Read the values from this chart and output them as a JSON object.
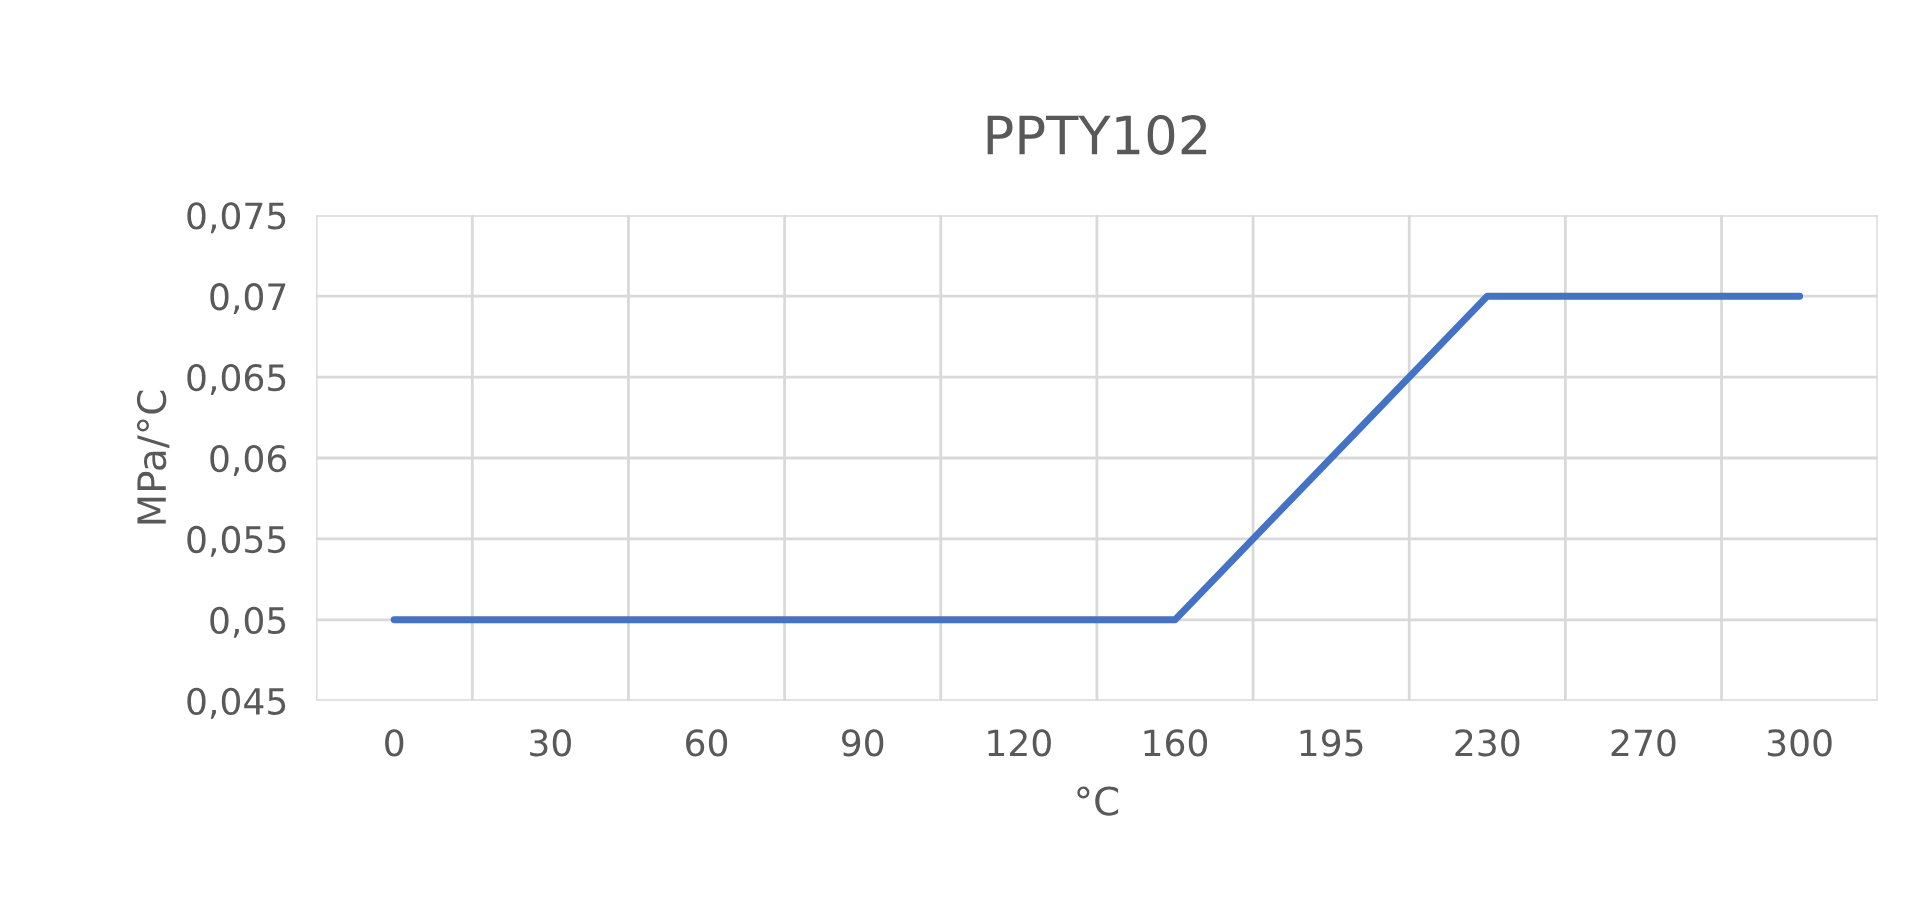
{
  "chart_data": {
    "type": "line",
    "title": "PPTY102",
    "xlabel": "°C",
    "ylabel": "MPa/°C",
    "categories": [
      "0",
      "30",
      "60",
      "90",
      "120",
      "160",
      "195",
      "230",
      "270",
      "300"
    ],
    "series": [
      {
        "color": "#4472c4",
        "values": [
          0.05,
          0.05,
          0.05,
          0.05,
          0.05,
          0.05,
          0.06,
          0.07,
          0.07,
          0.07
        ]
      }
    ],
    "ylim": [
      0.045,
      0.075
    ],
    "yticks": [
      {
        "value": 0.045,
        "label": "0,045"
      },
      {
        "value": 0.05,
        "label": "0,05"
      },
      {
        "value": 0.055,
        "label": "0,055"
      },
      {
        "value": 0.06,
        "label": "0,06"
      },
      {
        "value": 0.065,
        "label": "0,065"
      },
      {
        "value": 0.07,
        "label": "0,07"
      },
      {
        "value": 0.075,
        "label": "0,075"
      }
    ],
    "grid": true,
    "marker": "none",
    "line_style": "solid"
  }
}
